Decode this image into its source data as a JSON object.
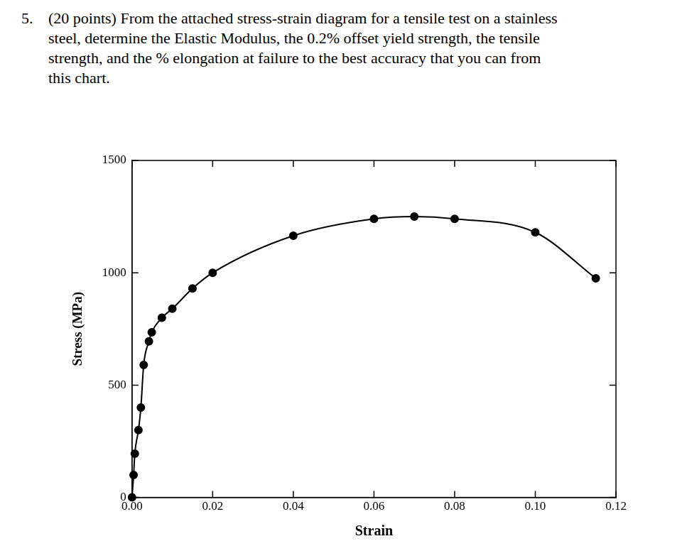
{
  "question": {
    "number": "5.",
    "lines": [
      "(20 points) From the attached stress-strain diagram for a tensile test on a stainless",
      "steel, determine the Elastic Modulus, the 0.2% offset yield strength, the tensile",
      "strength, and the % elongation at failure to the best accuracy that you can from",
      "this chart."
    ]
  },
  "chart_data": {
    "type": "line",
    "x_label": "Strain",
    "y_label": "Stress (MPa)",
    "x": [
      0,
      0.0004,
      0.0007,
      0.0016,
      0.0022,
      0.0029,
      0.0042,
      0.0049,
      0.0074,
      0.01,
      0.015,
      0.02,
      0.04,
      0.06,
      0.07,
      0.08,
      0.1,
      0.115
    ],
    "values": [
      0,
      100,
      195,
      300,
      400,
      590,
      695,
      735,
      800,
      840,
      930,
      1000,
      1165,
      1240,
      1250,
      1240,
      1180,
      975
    ],
    "color": "#000000",
    "marker": "circle",
    "line_style": "solid",
    "xlim": [
      0,
      0.12
    ],
    "xticks": [
      {
        "value": 0,
        "label": "0.00"
      },
      0.02,
      0.04,
      0.06,
      0.08,
      {
        "value": 0.1,
        "label": "0.10"
      },
      0.12
    ],
    "ylim": [
      0,
      1500
    ],
    "yticks": [
      0,
      500,
      1000,
      1500
    ],
    "grid": false
  }
}
